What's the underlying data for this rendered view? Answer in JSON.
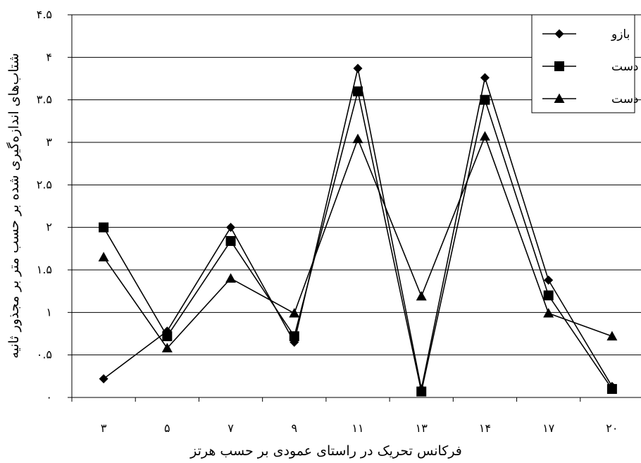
{
  "chart_data": {
    "type": "line",
    "categories": [
      "۳",
      "۵",
      "۷",
      "۹",
      "۱۱",
      "۱۳",
      "۱۴",
      "۱۷",
      "۲۰"
    ],
    "xlabel": "فرکانس تحریک در راستای عمودی بر حسب هرتز",
    "ylabel": "شتاب‌های اندازه‌گیری شده بر حسب متر بر مجذور ثانیه",
    "ylim": [
      0,
      4.5
    ],
    "yticks": [
      0,
      0.5,
      1,
      1.5,
      2,
      2.5,
      3,
      3.5,
      4,
      4.5
    ],
    "ytick_labels": [
      "۰",
      "۰.۵",
      "۱",
      "۱.۵",
      "۲",
      "۲.۵",
      "۳",
      "۳.۵",
      "۴",
      "۴.۵"
    ],
    "grid": true,
    "legend_position": "top-right",
    "series": [
      {
        "name": "بازو",
        "marker": "diamond",
        "values": [
          0.22,
          0.78,
          2.0,
          0.65,
          3.87,
          0.1,
          3.76,
          1.38,
          0.13
        ]
      },
      {
        "name": "ساق دست",
        "marker": "square",
        "values": [
          2.0,
          0.72,
          1.84,
          0.72,
          3.6,
          0.07,
          3.5,
          1.2,
          0.1
        ]
      },
      {
        "name": "دست",
        "marker": "triangle",
        "values": [
          1.65,
          0.58,
          1.4,
          0.99,
          3.04,
          1.19,
          3.07,
          0.99,
          0.72
        ]
      }
    ]
  }
}
